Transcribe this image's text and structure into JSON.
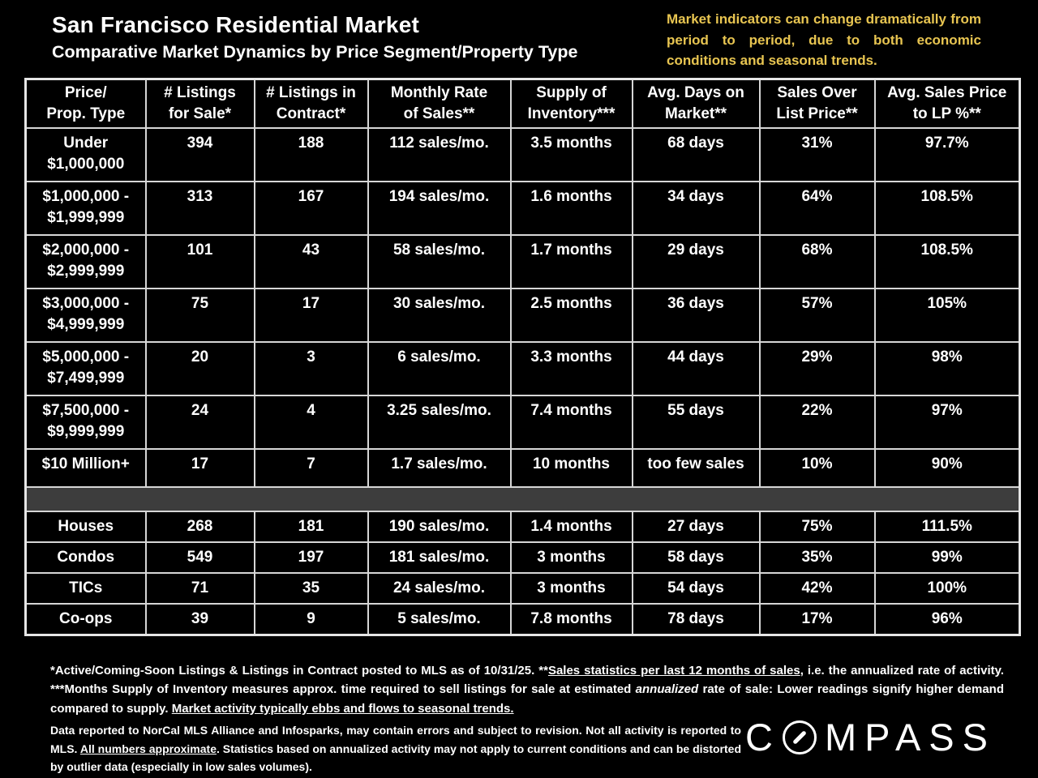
{
  "header": {
    "title": "San Francisco Residential Market",
    "subtitle": "Comparative Market Dynamics by Price Segment/Property Type",
    "note": "Market indicators can change dramatically from period to period, due to both economic conditions and seasonal trends.",
    "note_color": "#e8c551"
  },
  "chart_data": {
    "type": "table",
    "title": "San Francisco Residential Market — Comparative Market Dynamics by Price Segment/Property Type",
    "columns": [
      "Price/\nProp. Type",
      "# Listings\nfor Sale*",
      "# Listings in\nContract*",
      "Monthly Rate\nof Sales**",
      "Supply of\nInventory***",
      "Avg. Days on\nMarket**",
      "Sales Over\nList Price**",
      "Avg. Sales Price\nto LP %**"
    ],
    "segment_rows": [
      [
        "Under\n$1,000,000",
        "394",
        "188",
        "112 sales/mo.",
        "3.5 months",
        "68 days",
        "31%",
        "97.7%"
      ],
      [
        "$1,000,000 -\n$1,999,999",
        "313",
        "167",
        "194 sales/mo.",
        "1.6 months",
        "34 days",
        "64%",
        "108.5%"
      ],
      [
        "$2,000,000 -\n$2,999,999",
        "101",
        "43",
        "58 sales/mo.",
        "1.7 months",
        "29 days",
        "68%",
        "108.5%"
      ],
      [
        "$3,000,000 -\n$4,999,999",
        "75",
        "17",
        "30 sales/mo.",
        "2.5 months",
        "36 days",
        "57%",
        "105%"
      ],
      [
        "$5,000,000 -\n$7,499,999",
        "20",
        "3",
        "6 sales/mo.",
        "3.3 months",
        "44 days",
        "29%",
        "98%"
      ],
      [
        "$7,500,000 -\n$9,999,999",
        "24",
        "4",
        "3.25 sales/mo.",
        "7.4 months",
        "55 days",
        "22%",
        "97%"
      ],
      [
        "$10 Million+",
        "17",
        "7",
        "1.7 sales/mo.",
        "10 months",
        "too few sales",
        "10%",
        "90%"
      ]
    ],
    "property_rows": [
      [
        "Houses",
        "268",
        "181",
        "190 sales/mo.",
        "1.4 months",
        "27 days",
        "75%",
        "111.5%"
      ],
      [
        "Condos",
        "549",
        "197",
        "181 sales/mo.",
        "3 months",
        "58 days",
        "35%",
        "99%"
      ],
      [
        "TICs",
        "71",
        "35",
        "24 sales/mo.",
        "3 months",
        "54 days",
        "42%",
        "100%"
      ],
      [
        "Co-ops",
        "39",
        "9",
        "5 sales/mo.",
        "7.8 months",
        "78 days",
        "17%",
        "96%"
      ]
    ],
    "separator_color": "#3d3d3d",
    "layout": {
      "grid": "on",
      "border_color": "#d6d6d6",
      "background": "#000000"
    }
  },
  "footnotes": {
    "block1": [
      {
        "t": "*Active/Coming-Soon Listings & Listings in Contract posted to MLS as of 10/31/25. **",
        "s": "p"
      },
      {
        "t": "Sales statistics per last 12 months of sales",
        "s": "u"
      },
      {
        "t": ", i.e. the annualized rate of activity.  ***Months Supply of Inventory measures approx. time required to sell listings for sale at estimated ",
        "s": "p"
      },
      {
        "t": "annualized",
        "s": "i"
      },
      {
        "t": " rate of sale:  Lower readings signify higher demand compared to supply. ",
        "s": "p"
      },
      {
        "t": "Market activity typically ebbs and flows to seasonal trends.",
        "s": "u"
      }
    ],
    "block2": [
      {
        "t": "Data reported to NorCal MLS Alliance and Infosparks, may contain errors and subject to revision.  Not all activity is reported to MLS. ",
        "s": "p"
      },
      {
        "t": "All numbers approximate",
        "s": "u"
      },
      {
        "t": ". Statistics based on annualized activity may not apply to current conditions and can be distorted by outlier data (especially in low sales volumes).",
        "s": "p"
      }
    ]
  },
  "brand": {
    "name": "COMPASS",
    "part1": "C",
    "part2": "MPASS",
    "o_icon": "compass-needle-icon"
  }
}
